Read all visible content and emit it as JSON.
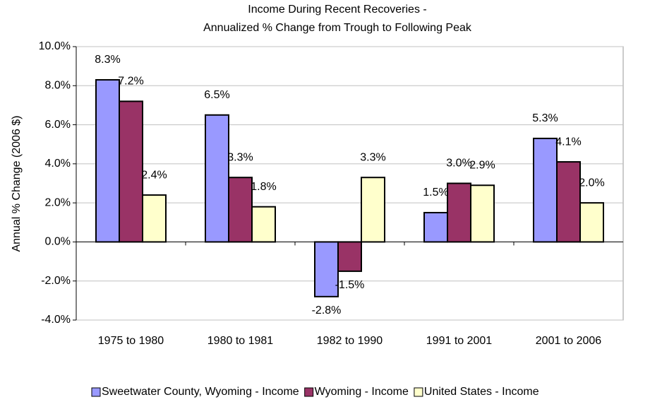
{
  "chart_data": {
    "type": "bar",
    "title": "Income During Recent Recoveries -",
    "subtitle": "Annualized % Change from Trough to Following Peak",
    "y_label": "Annual % Change (2006 $)",
    "categories": [
      "1975 to 1980",
      "1980 to 1981",
      "1982 to 1990",
      "1991 to 2001",
      "2001 to 2006"
    ],
    "series": [
      {
        "name": "Sweetwater County, Wyoming - Income",
        "color": "#9999ff",
        "values": [
          8.3,
          6.5,
          -2.8,
          1.5,
          5.3
        ],
        "value_labels": [
          "8.3%",
          "6.5%",
          "-2.8%",
          "1.5%",
          "5.3%"
        ]
      },
      {
        "name": "Wyoming - Income",
        "color": "#993366",
        "values": [
          7.2,
          3.3,
          -1.5,
          3.0,
          4.1
        ],
        "value_labels": [
          "7.2%",
          "3.3%",
          "-1.5%",
          "3.0%",
          "4.1%"
        ]
      },
      {
        "name": "United States - Income",
        "color": "#ffffcc",
        "values": [
          2.4,
          1.8,
          3.3,
          2.9,
          2.0
        ],
        "value_labels": [
          "2.4%",
          "1.8%",
          "3.3%",
          "2.9%",
          "2.0%"
        ]
      }
    ],
    "ylim": [
      -4,
      10
    ],
    "yticks": [
      {
        "value": -4,
        "label": "-4.0%"
      },
      {
        "value": -2,
        "label": "-2.0%"
      },
      {
        "value": 0,
        "label": "0.0%"
      },
      {
        "value": 2,
        "label": "2.0%"
      },
      {
        "value": 4,
        "label": "4.0%"
      },
      {
        "value": 6,
        "label": "6.0%"
      },
      {
        "value": 8,
        "label": "8.0%"
      },
      {
        "value": 10,
        "label": "10.0%"
      }
    ],
    "grid": true,
    "legend": "bottom"
  }
}
